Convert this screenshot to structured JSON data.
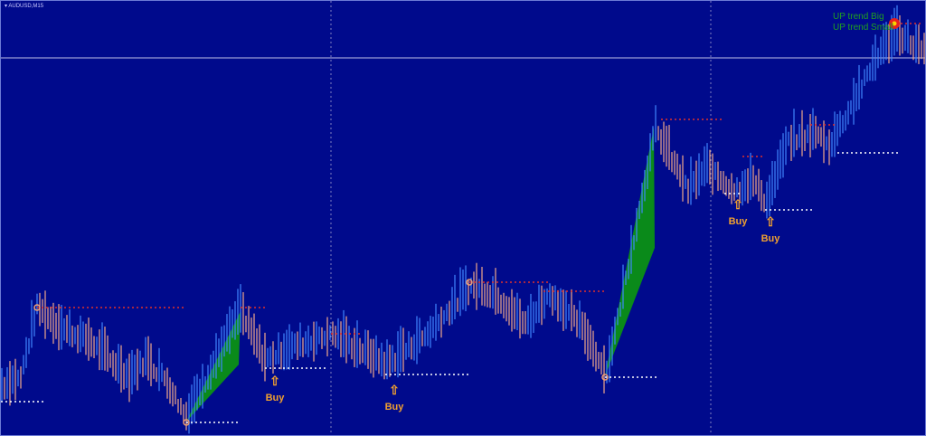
{
  "window": {
    "symbol_title": "AUDUSD,M15"
  },
  "legend": {
    "line1": "UP trend Big",
    "line2": "UP trend Small"
  },
  "colors": {
    "background": "#000a8c",
    "up_bar": "#3f86ff",
    "down_bar": "#f2a98a",
    "resistance": "#e0302a",
    "support": "#ffffff",
    "pattern_fill": "#0a8a1a",
    "buy_label": "#f0a030",
    "legend_text": "#1fa11f"
  },
  "chart_data": {
    "type": "bar",
    "title": "AUDUSD,M15",
    "price_path": [
      [
        0,
        11
      ],
      [
        7,
        13
      ],
      [
        13,
        29
      ],
      [
        20,
        25
      ],
      [
        33,
        21
      ],
      [
        47,
        13
      ],
      [
        53,
        17
      ],
      [
        60,
        13
      ],
      [
        68,
        4
      ],
      [
        88,
        28
      ],
      [
        97,
        17
      ],
      [
        107,
        20
      ],
      [
        122,
        23
      ],
      [
        133,
        19
      ],
      [
        142,
        16
      ],
      [
        157,
        23
      ],
      [
        173,
        34
      ],
      [
        182,
        32
      ],
      [
        193,
        25
      ],
      [
        202,
        32
      ],
      [
        213,
        25
      ],
      [
        223,
        14
      ],
      [
        241,
        70
      ],
      [
        247,
        63
      ],
      [
        253,
        56
      ],
      [
        260,
        61
      ],
      [
        270,
        56
      ],
      [
        277,
        58
      ],
      [
        282,
        53
      ],
      [
        290,
        67
      ],
      [
        300,
        69
      ],
      [
        305,
        66
      ],
      [
        313,
        75
      ],
      [
        323,
        87
      ],
      [
        330,
        92
      ],
      [
        341,
        87
      ]
    ],
    "annotations": {
      "buy_signals": [
        "Buy",
        "Buy",
        "Buy",
        "Buy"
      ]
    },
    "grid": false
  }
}
